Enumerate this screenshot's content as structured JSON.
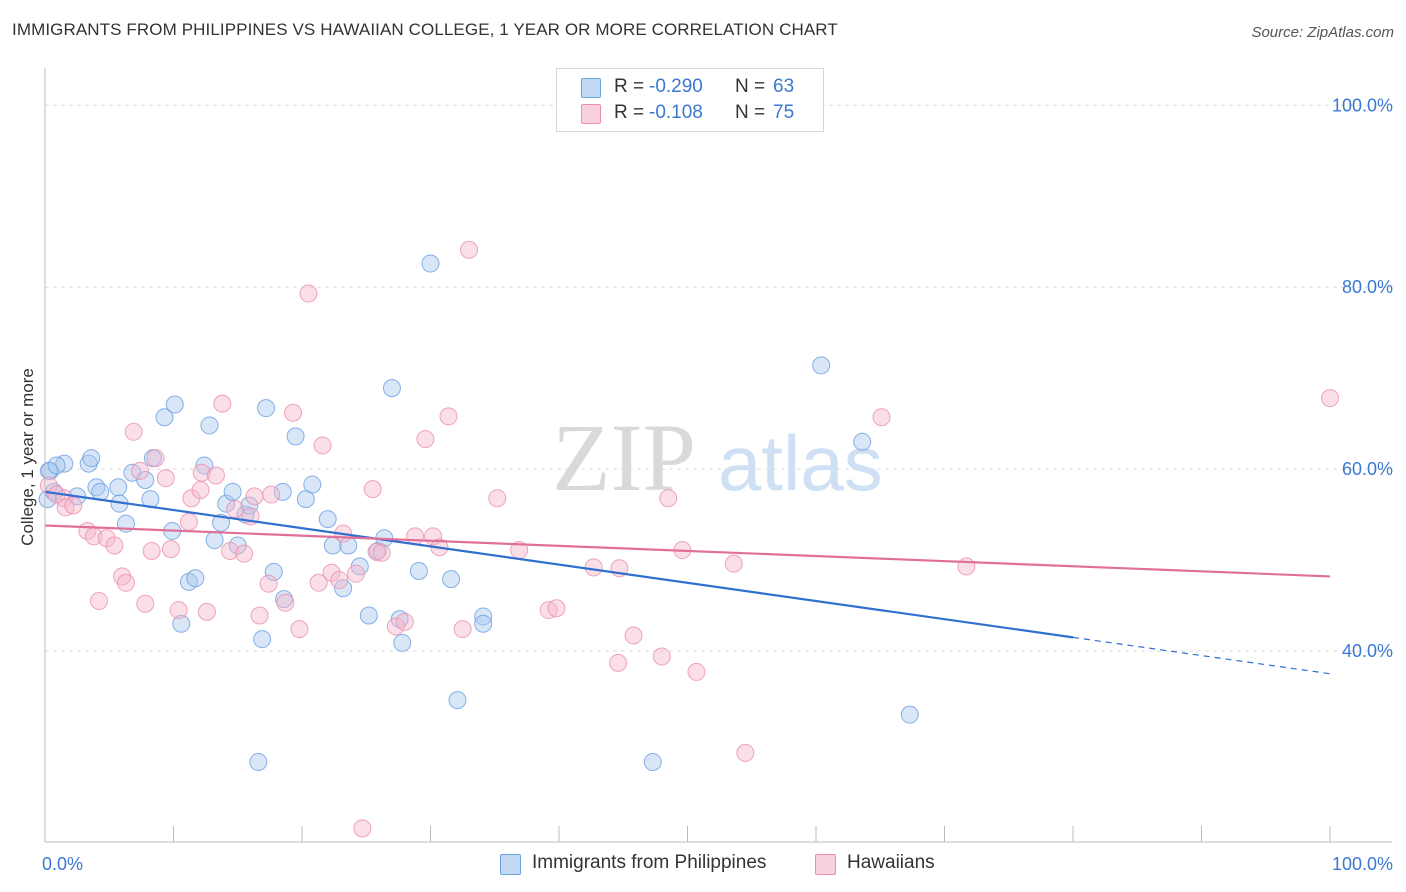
{
  "title": "IMMIGRANTS FROM PHILIPPINES VS HAWAIIAN COLLEGE, 1 YEAR OR MORE CORRELATION CHART",
  "source": "Source: ZipAtlas.com",
  "watermark": {
    "zip": "ZIP",
    "atlas": "atlas"
  },
  "legend": {
    "rows": [
      {
        "r_label": "R =",
        "r_value": "-0.290",
        "n_label": "N =",
        "n_value": "63",
        "color": "#a9c8f0"
      },
      {
        "r_label": "R =",
        "r_value": "-0.108",
        "n_label": "N =",
        "n_value": "75",
        "color": "#f5b8cb"
      }
    ]
  },
  "bottom_legend": [
    {
      "label": "Immigrants from Philippines",
      "color": "#a9c8f0"
    },
    {
      "label": "Hawaiians",
      "color": "#f5b8cb"
    }
  ],
  "chart_data": {
    "type": "scatter",
    "xlabel": "",
    "ylabel": "College, 1 year or more",
    "x_tick_labels": [
      "0.0%",
      "100.0%"
    ],
    "y_tick_labels": [
      "40.0%",
      "60.0%",
      "80.0%",
      "100.0%"
    ],
    "xlim": [
      0,
      100
    ],
    "ylim": [
      19,
      103
    ],
    "grid": true,
    "series": [
      {
        "name": "Immigrants from Philippines",
        "color": "#6a9fe0",
        "fill": "#a9c8f0",
        "line_color": "#2f6fd0",
        "trend": {
          "x0": 0,
          "y0": 57.5,
          "x1": 80,
          "y1": 41.5,
          "dashed_to": 100,
          "dashed_y": 37.5
        },
        "points": [
          [
            0.2,
            56.7
          ],
          [
            0.4,
            59.8
          ],
          [
            0.7,
            57.5
          ],
          [
            1.5,
            60.6
          ],
          [
            2.5,
            57.0
          ],
          [
            3.4,
            60.6
          ],
          [
            3.6,
            61.2
          ],
          [
            4.0,
            58.0
          ],
          [
            4.3,
            57.5
          ],
          [
            5.7,
            58.0
          ],
          [
            5.8,
            56.2
          ],
          [
            6.3,
            54.0
          ],
          [
            6.8,
            59.6
          ],
          [
            7.8,
            58.8
          ],
          [
            8.2,
            56.7
          ],
          [
            8.4,
            61.2
          ],
          [
            9.3,
            65.7
          ],
          [
            9.9,
            53.2
          ],
          [
            10.1,
            67.1
          ],
          [
            10.6,
            43.0
          ],
          [
            11.2,
            47.6
          ],
          [
            11.7,
            48.0
          ],
          [
            12.4,
            60.4
          ],
          [
            12.8,
            64.8
          ],
          [
            13.2,
            52.2
          ],
          [
            13.7,
            54.1
          ],
          [
            14.1,
            56.2
          ],
          [
            14.6,
            57.5
          ],
          [
            15.0,
            51.6
          ],
          [
            15.6,
            55.0
          ],
          [
            15.9,
            56.0
          ],
          [
            16.6,
            27.8
          ],
          [
            16.9,
            41.3
          ],
          [
            17.2,
            66.7
          ],
          [
            17.8,
            48.7
          ],
          [
            18.6,
            45.7
          ],
          [
            18.5,
            57.5
          ],
          [
            19.5,
            63.6
          ],
          [
            20.3,
            56.7
          ],
          [
            20.8,
            58.3
          ],
          [
            22.0,
            54.5
          ],
          [
            22.4,
            51.6
          ],
          [
            23.2,
            46.9
          ],
          [
            23.6,
            51.6
          ],
          [
            24.5,
            49.3
          ],
          [
            25.2,
            43.9
          ],
          [
            25.9,
            51.0
          ],
          [
            26.4,
            52.4
          ],
          [
            27.0,
            68.9
          ],
          [
            27.6,
            43.5
          ],
          [
            27.8,
            40.9
          ],
          [
            29.1,
            48.8
          ],
          [
            30.0,
            82.6
          ],
          [
            31.6,
            47.9
          ],
          [
            32.1,
            34.6
          ],
          [
            34.1,
            43.8
          ],
          [
            34.1,
            43.0
          ],
          [
            47.3,
            27.8
          ],
          [
            60.4,
            71.4
          ],
          [
            63.6,
            63.0
          ],
          [
            67.3,
            33.0
          ],
          [
            0.3,
            59.8
          ],
          [
            0.9,
            60.4
          ]
        ]
      },
      {
        "name": "Hawaiians",
        "color": "#ec8fac",
        "fill": "#f5b8cb",
        "line_color": "#e07098",
        "trend": {
          "x0": 0,
          "y0": 53.8,
          "x1": 100,
          "y1": 48.2
        },
        "points": [
          [
            0.3,
            58.2
          ],
          [
            0.9,
            57.2
          ],
          [
            1.5,
            56.8
          ],
          [
            1.6,
            55.8
          ],
          [
            2.2,
            56.0
          ],
          [
            3.3,
            53.2
          ],
          [
            3.8,
            52.6
          ],
          [
            4.2,
            45.5
          ],
          [
            4.8,
            52.4
          ],
          [
            5.4,
            51.6
          ],
          [
            6.0,
            48.2
          ],
          [
            6.3,
            47.5
          ],
          [
            6.9,
            64.1
          ],
          [
            7.4,
            59.8
          ],
          [
            7.8,
            45.2
          ],
          [
            8.3,
            51.0
          ],
          [
            8.6,
            61.2
          ],
          [
            9.4,
            59.0
          ],
          [
            9.8,
            51.2
          ],
          [
            10.4,
            44.5
          ],
          [
            11.2,
            54.2
          ],
          [
            11.4,
            56.8
          ],
          [
            12.1,
            57.7
          ],
          [
            12.2,
            59.6
          ],
          [
            12.6,
            44.3
          ],
          [
            13.3,
            59.3
          ],
          [
            13.8,
            67.2
          ],
          [
            14.4,
            51.0
          ],
          [
            14.8,
            55.6
          ],
          [
            15.5,
            50.7
          ],
          [
            16.0,
            54.8
          ],
          [
            16.3,
            57.0
          ],
          [
            16.7,
            43.9
          ],
          [
            17.4,
            47.4
          ],
          [
            17.6,
            57.2
          ],
          [
            18.7,
            45.3
          ],
          [
            19.3,
            66.2
          ],
          [
            19.8,
            42.4
          ],
          [
            20.5,
            79.3
          ],
          [
            21.3,
            47.5
          ],
          [
            21.6,
            62.6
          ],
          [
            22.3,
            48.6
          ],
          [
            22.9,
            47.8
          ],
          [
            23.2,
            52.9
          ],
          [
            24.2,
            48.5
          ],
          [
            24.7,
            20.5
          ],
          [
            25.5,
            57.8
          ],
          [
            25.8,
            50.9
          ],
          [
            26.2,
            50.8
          ],
          [
            27.3,
            42.7
          ],
          [
            28.0,
            43.2
          ],
          [
            28.8,
            52.6
          ],
          [
            29.6,
            63.3
          ],
          [
            30.2,
            52.6
          ],
          [
            30.7,
            51.4
          ],
          [
            31.4,
            65.8
          ],
          [
            32.5,
            42.4
          ],
          [
            33.0,
            84.1
          ],
          [
            35.2,
            56.8
          ],
          [
            36.9,
            51.1
          ],
          [
            39.2,
            44.5
          ],
          [
            39.8,
            44.7
          ],
          [
            42.7,
            49.2
          ],
          [
            44.6,
            38.7
          ],
          [
            44.7,
            49.1
          ],
          [
            45.8,
            41.7
          ],
          [
            48.0,
            39.4
          ],
          [
            48.5,
            56.8
          ],
          [
            49.6,
            51.1
          ],
          [
            50.7,
            37.7
          ],
          [
            53.6,
            49.6
          ],
          [
            54.5,
            28.8
          ],
          [
            65.1,
            65.7
          ],
          [
            71.7,
            49.3
          ],
          [
            100.0,
            67.8
          ]
        ]
      }
    ]
  }
}
